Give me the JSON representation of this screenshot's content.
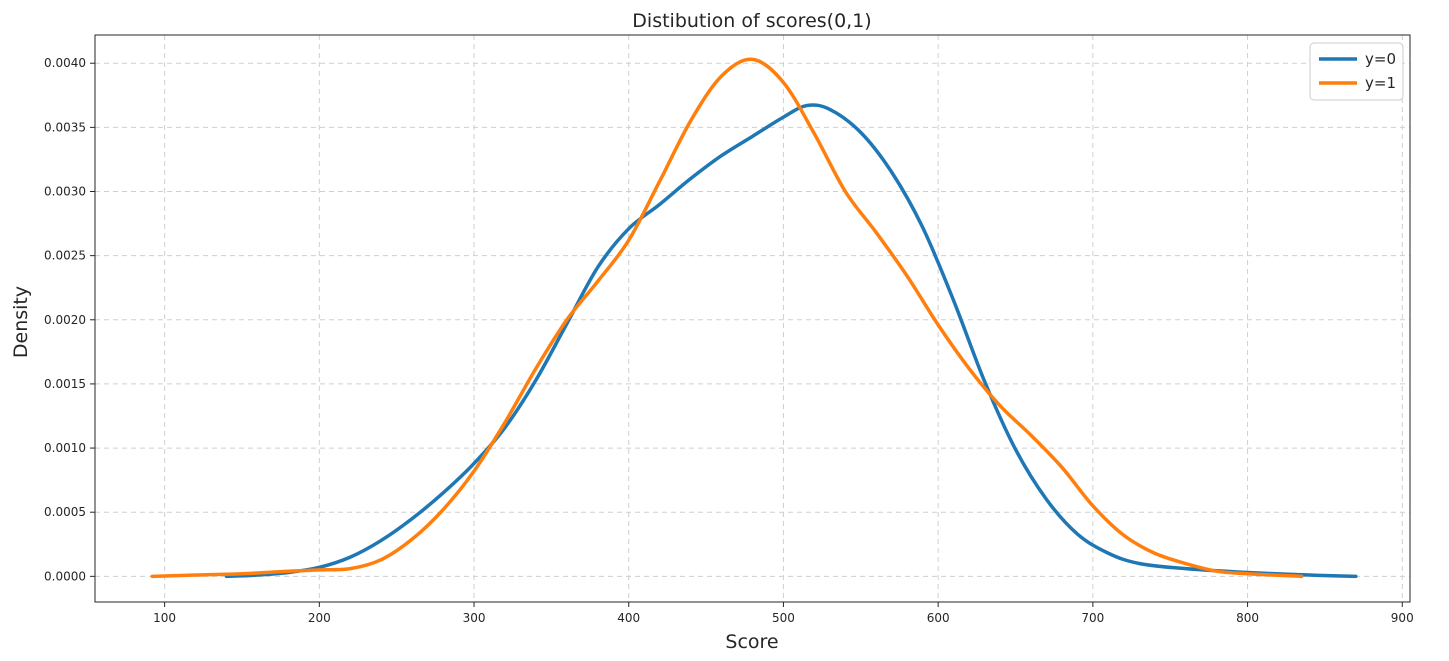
{
  "chart_data": {
    "type": "line",
    "title": "Distibution of scores(0,1)",
    "xlabel": "Score",
    "ylabel": "Density",
    "xlim": [
      55,
      905
    ],
    "ylim": [
      -0.0002,
      0.00422
    ],
    "xticks": [
      100,
      200,
      300,
      400,
      500,
      600,
      700,
      800,
      900
    ],
    "xtick_labels": [
      "100",
      "200",
      "300",
      "400",
      "500",
      "600",
      "700",
      "800",
      "900"
    ],
    "yticks": [
      0.0,
      0.0005,
      0.001,
      0.0015,
      0.002,
      0.0025,
      0.003,
      0.0035,
      0.004
    ],
    "ytick_labels": [
      "0.0000",
      "0.0005",
      "0.0010",
      "0.0015",
      "0.0020",
      "0.0025",
      "0.0030",
      "0.0035",
      "0.0040"
    ],
    "grid": true,
    "legend_position": "top-right",
    "series": [
      {
        "name": "y=0",
        "color": "#1f77b4",
        "x": [
          140,
          160,
          180,
          200,
          220,
          240,
          260,
          280,
          300,
          320,
          340,
          360,
          380,
          400,
          420,
          440,
          460,
          480,
          500,
          515,
          530,
          550,
          570,
          590,
          610,
          630,
          650,
          670,
          690,
          710,
          730,
          760,
          800,
          840,
          870
        ],
        "y": [
          0.0,
          1e-05,
          3e-05,
          7e-05,
          0.00015,
          0.00028,
          0.00045,
          0.00065,
          0.00088,
          0.00116,
          0.00153,
          0.00197,
          0.00241,
          0.00271,
          0.0029,
          0.0031,
          0.00328,
          0.00343,
          0.00358,
          0.00367,
          0.00364,
          0.00346,
          0.00315,
          0.00272,
          0.00215,
          0.00152,
          0.00099,
          0.0006,
          0.00033,
          0.00018,
          0.0001,
          6e-05,
          3e-05,
          1e-05,
          0.0
        ]
      },
      {
        "name": "y=1",
        "color": "#ff7f0e",
        "x": [
          92,
          120,
          150,
          180,
          200,
          220,
          240,
          260,
          280,
          300,
          320,
          340,
          360,
          380,
          400,
          420,
          440,
          460,
          480,
          500,
          520,
          540,
          560,
          580,
          600,
          620,
          640,
          660,
          680,
          700,
          720,
          740,
          760,
          780,
          800,
          835
        ],
        "y": [
          0.0,
          1e-05,
          2e-05,
          4e-05,
          5e-05,
          6e-05,
          0.00013,
          0.00029,
          0.00052,
          0.00082,
          0.0012,
          0.00162,
          0.002,
          0.0023,
          0.00262,
          0.00308,
          0.00355,
          0.0039,
          0.00403,
          0.00385,
          0.00345,
          0.003,
          0.00268,
          0.00234,
          0.00196,
          0.00162,
          0.00133,
          0.0011,
          0.00085,
          0.00055,
          0.00032,
          0.00018,
          0.0001,
          4e-05,
          2e-05,
          0.0
        ]
      }
    ]
  }
}
